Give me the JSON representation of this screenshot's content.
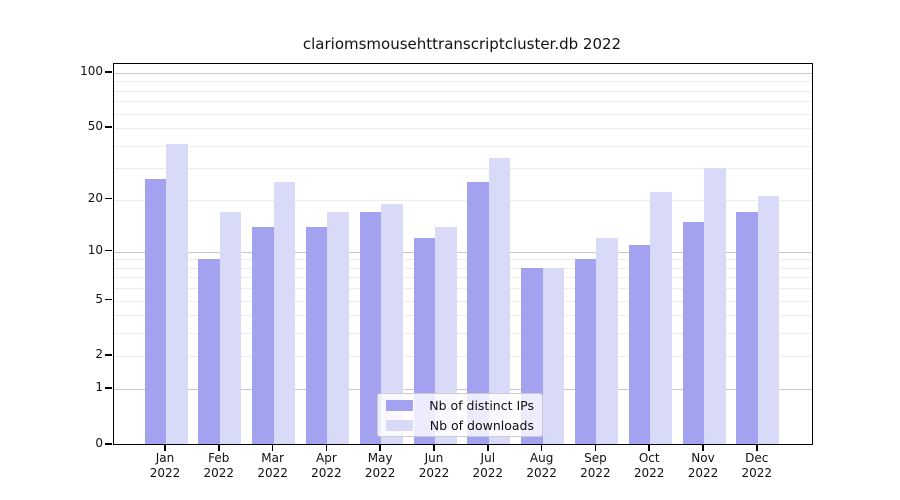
{
  "title": "clariomsmousehttranscriptcluster.db 2022",
  "chart_data": {
    "type": "bar",
    "title": "clariomsmousehttranscriptcluster.db 2022",
    "yscale": "log1p",
    "categories": [
      "Jan",
      "Feb",
      "Mar",
      "Apr",
      "May",
      "Jun",
      "Jul",
      "Aug",
      "Sep",
      "Oct",
      "Nov",
      "Dec"
    ],
    "category_year": "2022",
    "series": [
      {
        "name": "Nb of distinct IPs",
        "color": "#a2a2f0",
        "values": [
          26,
          9,
          14,
          14,
          17,
          12,
          25,
          8,
          9,
          11,
          15,
          17
        ]
      },
      {
        "name": "Nb of downloads",
        "color": "#d9d9f8",
        "values": [
          41,
          17,
          25,
          17,
          19,
          14,
          34,
          8,
          12,
          22,
          30,
          21
        ]
      }
    ],
    "yticks": [
      100,
      50,
      20,
      10,
      5,
      2,
      1,
      0
    ],
    "ylim": [
      0,
      110
    ],
    "grid": {
      "minor_values": [
        2,
        3,
        4,
        5,
        6,
        7,
        8,
        9,
        20,
        30,
        40,
        50,
        60,
        70,
        80,
        90
      ],
      "major_values": [
        1,
        10,
        100
      ],
      "minor_color": "#ededed",
      "major_color": "#c8c8c8"
    },
    "legend": {
      "position": "lower center",
      "entries": [
        "Nb of distinct IPs",
        "Nb of downloads"
      ]
    },
    "xlabel": "",
    "ylabel": "",
    "axis_color": "#000000",
    "background_color": "#ffffff"
  }
}
